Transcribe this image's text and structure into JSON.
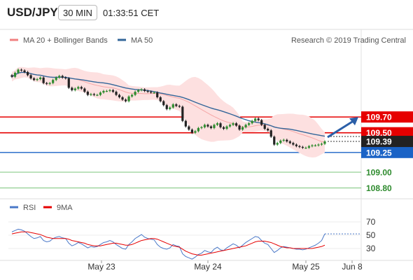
{
  "header": {
    "symbol": "USD/JPY",
    "timeframe": "30 MIN",
    "time": "01:33:51 CET"
  },
  "price_panel": {
    "legend": [
      {
        "label": "MA 20 + Bollinger Bands",
        "color": "#f08080"
      },
      {
        "label": "MA 50",
        "color": "#336699"
      }
    ],
    "watermark": "Research © 2019 Trading Central",
    "levels": [
      {
        "value": "109.70",
        "kind": "resistance",
        "color": "#e60000"
      },
      {
        "value": "109.50",
        "kind": "resistance",
        "color": "#e60000"
      },
      {
        "value": "109.25",
        "kind": "support",
        "color": "#1a63c6"
      },
      {
        "value": "109.00",
        "kind": "support",
        "color": "#2e8b2e"
      },
      {
        "value": "108.80",
        "kind": "support",
        "color": "#2e8b2e"
      }
    ],
    "current_price": "109.39",
    "colors": {
      "up": "#2e8b2e",
      "down": "#222222",
      "bands": "#fde0e0",
      "ma20": "#f08080",
      "ma50": "#336699",
      "arrow": "#2b5fa8"
    }
  },
  "rsi_panel": {
    "legend": [
      {
        "label": "RSI",
        "color": "#4a78c8"
      },
      {
        "label": "9MA",
        "color": "#e60000"
      }
    ],
    "ticks": [
      "70",
      "50",
      "30"
    ]
  },
  "x_axis": {
    "labels": [
      "May 23",
      "May 24",
      "May 25",
      "Jun 8"
    ]
  },
  "chart_data": {
    "type": "candlestick",
    "title": "USD/JPY 30 MIN",
    "ylim": [
      108.68,
      110.58
    ],
    "close": [
      110.21,
      110.26,
      110.3,
      110.29,
      110.27,
      110.23,
      110.19,
      110.17,
      110.18,
      110.2,
      110.13,
      110.12,
      110.13,
      110.17,
      110.2,
      110.22,
      110.2,
      110.19,
      110.07,
      110.04,
      110.06,
      110.08,
      110.06,
      110.02,
      109.98,
      109.99,
      109.98,
      109.98,
      110.01,
      110.03,
      110.03,
      110.04,
      110.02,
      109.98,
      109.95,
      109.92,
      109.9,
      109.96,
      109.98,
      110.02,
      110.04,
      110.05,
      110.03,
      110.02,
      110.01,
      110.01,
      109.95,
      109.9,
      109.85,
      109.8,
      109.82,
      109.86,
      109.84,
      109.83,
      109.65,
      109.58,
      109.54,
      109.5,
      109.52,
      109.56,
      109.57,
      109.6,
      109.58,
      109.56,
      109.6,
      109.62,
      109.57,
      109.55,
      109.58,
      109.6,
      109.62,
      109.59,
      109.54,
      109.57,
      109.6,
      109.62,
      109.65,
      109.68,
      109.66,
      109.6,
      109.55,
      109.53,
      109.45,
      109.35,
      109.37,
      109.4,
      109.41,
      109.39,
      109.37,
      109.35,
      109.33,
      109.32,
      109.31,
      109.31,
      109.33,
      109.34,
      109.34,
      109.35,
      109.36,
      109.39
    ],
    "series": [
      {
        "name": "RSI",
        "values": [
          55,
          57,
          59,
          58,
          56,
          52,
          48,
          45,
          46,
          48,
          42,
          40,
          41,
          45,
          47,
          48,
          46,
          45,
          38,
          34,
          36,
          39,
          37,
          34,
          31,
          33,
          32,
          33,
          36,
          39,
          40,
          42,
          40,
          36,
          33,
          30,
          29,
          36,
          40,
          45,
          48,
          51,
          47,
          45,
          44,
          43,
          36,
          32,
          30,
          29,
          31,
          36,
          34,
          33,
          22,
          18,
          16,
          14,
          17,
          21,
          23,
          27,
          25,
          24,
          29,
          32,
          28,
          27,
          31,
          34,
          37,
          35,
          31,
          35,
          39,
          42,
          45,
          48,
          47,
          42,
          38,
          36,
          30,
          24,
          27,
          31,
          33,
          32,
          31,
          30,
          29,
          29,
          28,
          29,
          31,
          33,
          35,
          38,
          42,
          52
        ]
      },
      {
        "name": "9MA",
        "values": [
          52,
          53,
          54,
          55,
          55,
          55,
          54,
          53,
          52,
          51,
          49,
          47,
          46,
          45,
          45,
          45,
          45,
          45,
          44,
          42,
          41,
          40,
          39,
          38,
          36,
          35,
          34,
          34,
          34,
          35,
          36,
          37,
          38,
          38,
          37,
          36,
          35,
          35,
          36,
          38,
          40,
          42,
          43,
          44,
          45,
          45,
          44,
          42,
          40,
          38,
          36,
          34,
          33,
          32,
          29,
          26,
          24,
          22,
          21,
          20,
          20,
          21,
          22,
          23,
          24,
          25,
          26,
          27,
          28,
          29,
          30,
          31,
          32,
          33,
          34,
          36,
          38,
          40,
          41,
          41,
          41,
          40,
          39,
          37,
          35,
          33,
          32,
          31,
          31,
          30,
          30,
          30,
          30,
          30,
          30,
          30,
          31,
          32,
          33,
          35
        ]
      }
    ]
  }
}
